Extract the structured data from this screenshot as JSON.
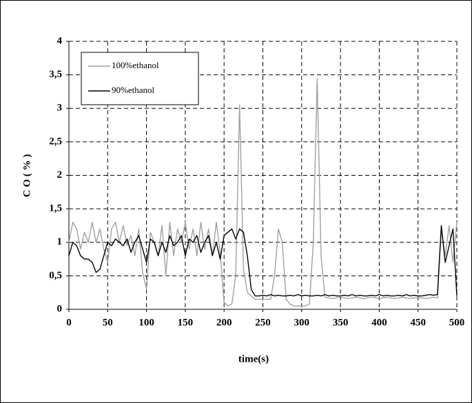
{
  "chart_data": {
    "type": "line",
    "x_label": "time(s)",
    "y_label": "C O ( % )",
    "xlim": [
      0,
      500
    ],
    "xticks": [
      0,
      50,
      100,
      150,
      200,
      250,
      300,
      350,
      400,
      450,
      500
    ],
    "ylim": [
      0,
      4
    ],
    "yticks": [
      0,
      {
        "value": 0.5,
        "label": "0,5"
      },
      1,
      {
        "value": 1.5,
        "label": "1,5"
      },
      2,
      {
        "value": 2.5,
        "label": "2,5"
      },
      3,
      {
        "value": 3.5,
        "label": "3,5"
      },
      4
    ],
    "grid": true,
    "legend": "upper left",
    "x": [
      0,
      5,
      10,
      15,
      20,
      25,
      30,
      35,
      40,
      45,
      50,
      55,
      60,
      65,
      70,
      75,
      80,
      85,
      90,
      95,
      100,
      105,
      110,
      115,
      120,
      125,
      130,
      135,
      140,
      145,
      150,
      155,
      160,
      165,
      170,
      175,
      180,
      185,
      190,
      195,
      200,
      205,
      210,
      215,
      220,
      225,
      230,
      235,
      240,
      245,
      250,
      255,
      260,
      265,
      270,
      275,
      280,
      285,
      290,
      295,
      300,
      305,
      310,
      315,
      320,
      325,
      330,
      335,
      340,
      345,
      350,
      355,
      360,
      365,
      370,
      375,
      380,
      385,
      390,
      395,
      400,
      405,
      410,
      415,
      420,
      425,
      430,
      435,
      440,
      445,
      450,
      455,
      460,
      465,
      470,
      475,
      480,
      485,
      490,
      495,
      500
    ],
    "series": [
      {
        "name": "100%ethanol",
        "color": "#a0a0a0",
        "values": [
          1.0,
          1.3,
          1.2,
          0.9,
          1.15,
          1.0,
          1.3,
          1.0,
          1.2,
          0.9,
          0.7,
          1.2,
          1.3,
          1.0,
          1.25,
          0.95,
          1.1,
          0.8,
          1.2,
          0.55,
          0.3,
          1.15,
          1.0,
          0.8,
          1.25,
          0.5,
          1.3,
          0.8,
          1.2,
          1.0,
          1.3,
          0.9,
          1.2,
          0.8,
          1.3,
          0.9,
          1.2,
          0.8,
          1.3,
          0.85,
          0.1,
          0.05,
          0.08,
          0.5,
          3.05,
          0.6,
          0.25,
          0.2,
          0.15,
          0.15,
          0.15,
          0.15,
          0.15,
          0.5,
          1.2,
          1.0,
          0.15,
          0.08,
          0.05,
          0.05,
          0.05,
          0.05,
          0.08,
          1.0,
          3.45,
          0.8,
          0.18,
          0.17,
          0.16,
          0.17,
          0.18,
          0.17,
          0.16,
          0.17,
          0.18,
          0.17,
          0.16,
          0.17,
          0.18,
          0.17,
          0.16,
          0.17,
          0.18,
          0.17,
          0.16,
          0.17,
          0.18,
          0.17,
          0.16,
          0.17,
          0.18,
          0.17,
          0.16,
          0.17,
          0.18,
          0.17,
          1.2,
          0.8,
          1.25,
          0.7,
          1.3
        ]
      },
      {
        "name": "90%ethanol",
        "color": "#000000",
        "values": [
          0.8,
          1.0,
          0.95,
          0.8,
          0.75,
          0.75,
          0.7,
          0.55,
          0.6,
          0.8,
          1.0,
          0.95,
          1.05,
          1.0,
          0.95,
          1.05,
          0.85,
          1.0,
          1.1,
          0.9,
          0.7,
          1.05,
          1.0,
          0.8,
          1.0,
          0.85,
          1.1,
          0.95,
          1.0,
          1.1,
          0.8,
          1.05,
          1.0,
          1.1,
          0.85,
          1.0,
          1.1,
          0.8,
          1.0,
          0.75,
          1.1,
          1.15,
          1.2,
          1.05,
          1.2,
          1.15,
          0.8,
          0.3,
          0.2,
          0.2,
          0.21,
          0.2,
          0.22,
          0.2,
          0.21,
          0.2,
          0.2,
          0.21,
          0.2,
          0.22,
          0.2,
          0.21,
          0.2,
          0.2,
          0.21,
          0.2,
          0.22,
          0.2,
          0.21,
          0.2,
          0.2,
          0.21,
          0.2,
          0.22,
          0.2,
          0.21,
          0.2,
          0.2,
          0.21,
          0.2,
          0.22,
          0.2,
          0.21,
          0.2,
          0.2,
          0.21,
          0.2,
          0.22,
          0.2,
          0.21,
          0.2,
          0.2,
          0.21,
          0.22,
          0.21,
          0.22,
          1.25,
          0.7,
          0.95,
          1.2,
          0.2
        ]
      }
    ]
  }
}
